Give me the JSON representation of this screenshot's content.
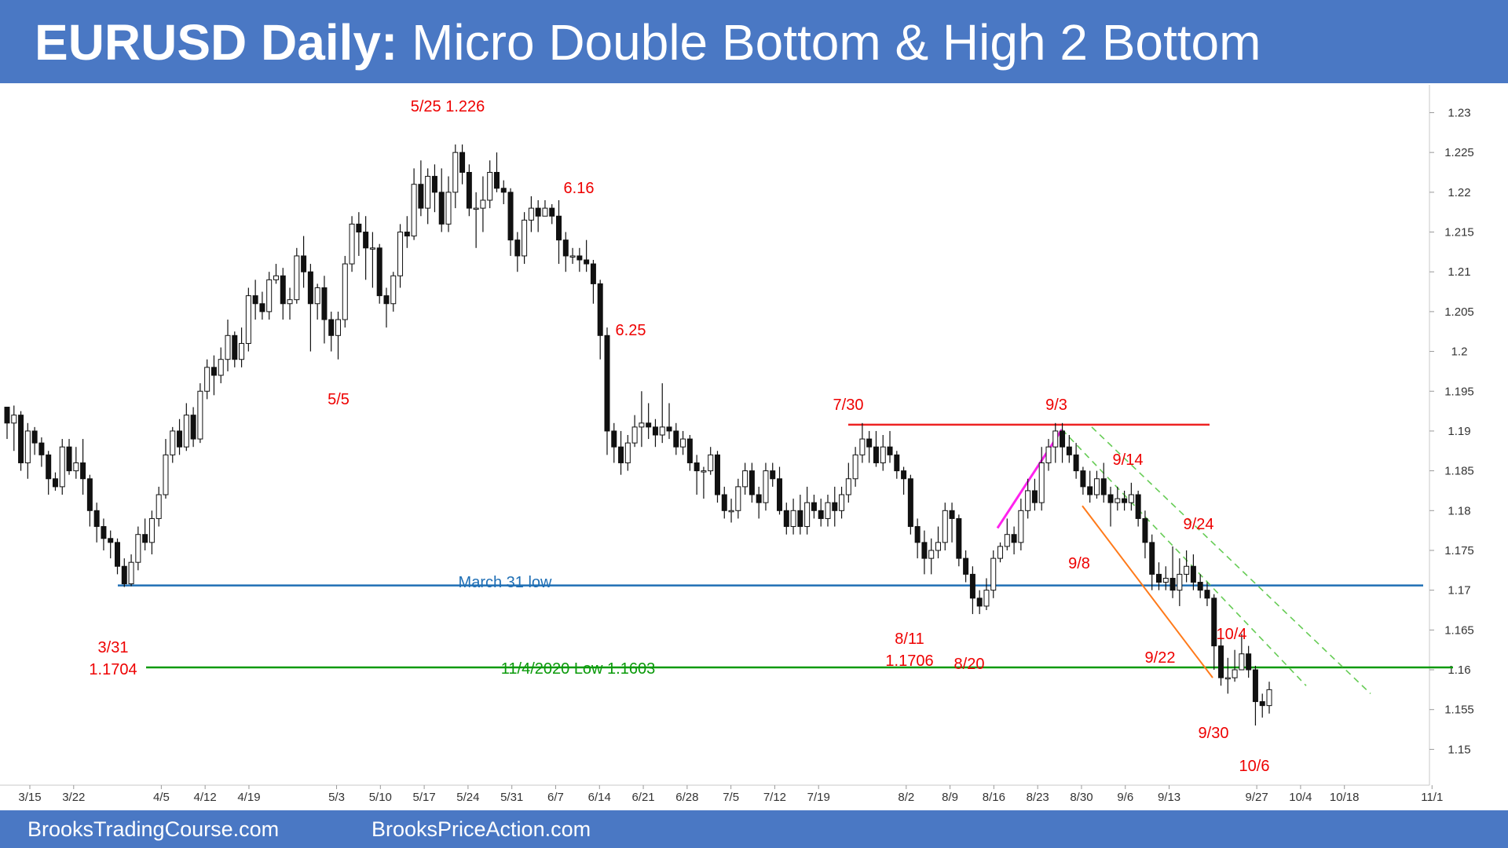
{
  "header": {
    "title_bold": "EURUSD Daily:",
    "title_rest": "Micro Double Bottom & High 2 Bottom"
  },
  "footer": {
    "left_link": "BrooksTradingCourse.com",
    "right_link": "BrooksPriceAction.com"
  },
  "colors": {
    "header_bg": "#4a78c4",
    "annotation": "#ee0000",
    "march_low_line": "#1f6fb5",
    "nov_low_line": "#0a9a0a",
    "resistance_line": "#ee2222",
    "magenta_line": "#ff22ee",
    "orange_line": "#ff7a1a",
    "channel_line": "#66cc55"
  },
  "chart_data": {
    "type": "candlestick",
    "title": "EURUSD Daily",
    "ylim": [
      1.1455,
      1.2335
    ],
    "y_ticks": [
      1.15,
      1.155,
      1.16,
      1.165,
      1.17,
      1.175,
      1.18,
      1.185,
      1.19,
      1.195,
      1.2,
      1.205,
      1.21,
      1.215,
      1.22,
      1.225,
      1.23
    ],
    "x_tick_labels": [
      {
        "day": 0,
        "label": "3/15"
      },
      {
        "day": 7,
        "label": "3/22"
      },
      {
        "day": 21,
        "label": "4/5"
      },
      {
        "day": 28,
        "label": "4/12"
      },
      {
        "day": 35,
        "label": "4/19"
      },
      {
        "day": 49,
        "label": "5/3"
      },
      {
        "day": 56,
        "label": "5/10"
      },
      {
        "day": 63,
        "label": "5/17"
      },
      {
        "day": 70,
        "label": "5/24"
      },
      {
        "day": 77,
        "label": "5/31"
      },
      {
        "day": 84,
        "label": "6/7"
      },
      {
        "day": 91,
        "label": "6/14"
      },
      {
        "day": 98,
        "label": "6/21"
      },
      {
        "day": 105,
        "label": "6/28"
      },
      {
        "day": 112,
        "label": "7/5"
      },
      {
        "day": 119,
        "label": "7/12"
      },
      {
        "day": 126,
        "label": "7/19"
      },
      {
        "day": 140,
        "label": "8/2"
      },
      {
        "day": 147,
        "label": "8/9"
      },
      {
        "day": 154,
        "label": "8/16"
      },
      {
        "day": 161,
        "label": "8/23"
      },
      {
        "day": 168,
        "label": "8/30"
      },
      {
        "day": 175,
        "label": "9/6"
      },
      {
        "day": 182,
        "label": "9/13"
      },
      {
        "day": 196,
        "label": "9/27"
      },
      {
        "day": 203,
        "label": "10/4"
      },
      {
        "day": 210,
        "label": "10/18"
      },
      {
        "day": 224,
        "label": "11/1"
      }
    ],
    "candles": [
      [
        1.193,
        1.191,
        1.193,
        1.189
      ],
      [
        1.191,
        1.192,
        1.1932,
        1.1875
      ],
      [
        1.192,
        1.186,
        1.1925,
        1.185
      ],
      [
        1.186,
        1.19,
        1.191,
        1.184
      ],
      [
        1.19,
        1.1885,
        1.1905,
        1.187
      ],
      [
        1.1885,
        1.187,
        1.1892,
        1.1855
      ],
      [
        1.187,
        1.184,
        1.1875,
        1.182
      ],
      [
        1.184,
        1.183,
        1.1848,
        1.1825
      ],
      [
        1.183,
        1.188,
        1.189,
        1.182
      ],
      [
        1.188,
        1.185,
        1.189,
        1.1845
      ],
      [
        1.185,
        1.186,
        1.188,
        1.184
      ],
      [
        1.186,
        1.184,
        1.189,
        1.182
      ],
      [
        1.184,
        1.18,
        1.1845,
        1.178
      ],
      [
        1.18,
        1.178,
        1.181,
        1.176
      ],
      [
        1.178,
        1.1765,
        1.179,
        1.175
      ],
      [
        1.1765,
        1.176,
        1.1775,
        1.174
      ],
      [
        1.176,
        1.173,
        1.1765,
        1.172
      ],
      [
        1.173,
        1.1708,
        1.174,
        1.1704
      ],
      [
        1.1708,
        1.1735,
        1.1745,
        1.1705
      ],
      [
        1.1735,
        1.177,
        1.178,
        1.1725
      ],
      [
        1.177,
        1.176,
        1.179,
        1.175
      ],
      [
        1.176,
        1.179,
        1.18,
        1.1745
      ],
      [
        1.179,
        1.182,
        1.183,
        1.178
      ],
      [
        1.182,
        1.187,
        1.189,
        1.1815
      ],
      [
        1.187,
        1.19,
        1.1905,
        1.186
      ],
      [
        1.19,
        1.188,
        1.1915,
        1.187
      ],
      [
        1.188,
        1.192,
        1.1935,
        1.1875
      ],
      [
        1.192,
        1.189,
        1.193,
        1.188
      ],
      [
        1.189,
        1.195,
        1.196,
        1.1885
      ],
      [
        1.195,
        1.198,
        1.199,
        1.194
      ],
      [
        1.198,
        1.197,
        1.1995,
        1.1945
      ],
      [
        1.197,
        1.199,
        1.2005,
        1.196
      ],
      [
        1.199,
        1.202,
        1.204,
        1.1975
      ],
      [
        1.202,
        1.199,
        1.2025,
        1.198
      ],
      [
        1.199,
        1.201,
        1.203,
        1.198
      ],
      [
        1.201,
        1.207,
        1.208,
        1.2
      ],
      [
        1.207,
        1.206,
        1.209,
        1.204
      ],
      [
        1.206,
        1.205,
        1.2075,
        1.204
      ],
      [
        1.205,
        1.209,
        1.21,
        1.204
      ],
      [
        1.209,
        1.2095,
        1.211,
        1.2085
      ],
      [
        1.2095,
        1.206,
        1.2105,
        1.204
      ],
      [
        1.206,
        1.2065,
        1.208,
        1.204
      ],
      [
        1.2065,
        1.212,
        1.213,
        1.206
      ],
      [
        1.212,
        1.21,
        1.2145,
        1.208
      ],
      [
        1.21,
        1.206,
        1.211,
        1.2
      ],
      [
        1.206,
        1.208,
        1.2085,
        1.204
      ],
      [
        1.208,
        1.204,
        1.2095,
        1.201
      ],
      [
        1.204,
        1.202,
        1.205,
        1.2
      ],
      [
        1.202,
        1.204,
        1.205,
        1.199
      ],
      [
        1.204,
        1.211,
        1.212,
        1.203
      ],
      [
        1.211,
        1.216,
        1.217,
        1.21
      ],
      [
        1.216,
        1.215,
        1.2175,
        1.212
      ],
      [
        1.215,
        1.213,
        1.217,
        1.209
      ],
      [
        1.213,
        1.213,
        1.215,
        1.208
      ],
      [
        1.213,
        1.207,
        1.2135,
        1.206
      ],
      [
        1.207,
        1.206,
        1.208,
        1.203
      ],
      [
        1.206,
        1.2095,
        1.21,
        1.205
      ],
      [
        1.2095,
        1.215,
        1.216,
        1.208
      ],
      [
        1.215,
        1.2145,
        1.217,
        1.213
      ],
      [
        1.2145,
        1.221,
        1.223,
        1.214
      ],
      [
        1.221,
        1.218,
        1.224,
        1.217
      ],
      [
        1.218,
        1.222,
        1.223,
        1.216
      ],
      [
        1.222,
        1.22,
        1.2235,
        1.2175
      ],
      [
        1.22,
        1.216,
        1.223,
        1.215
      ],
      [
        1.216,
        1.22,
        1.222,
        1.215
      ],
      [
        1.22,
        1.225,
        1.226,
        1.218
      ],
      [
        1.225,
        1.2225,
        1.226,
        1.221
      ],
      [
        1.2225,
        1.218,
        1.2235,
        1.217
      ],
      [
        1.218,
        1.218,
        1.22,
        1.213
      ],
      [
        1.218,
        1.219,
        1.222,
        1.215
      ],
      [
        1.219,
        1.2225,
        1.224,
        1.218
      ],
      [
        1.2225,
        1.2205,
        1.225,
        1.22
      ],
      [
        1.2205,
        1.22,
        1.2215,
        1.2185
      ],
      [
        1.22,
        1.214,
        1.2205,
        1.212
      ],
      [
        1.214,
        1.212,
        1.215,
        1.21
      ],
      [
        1.212,
        1.2165,
        1.2175,
        1.211
      ],
      [
        1.2165,
        1.218,
        1.2195,
        1.215
      ],
      [
        1.218,
        1.217,
        1.219,
        1.215
      ],
      [
        1.217,
        1.218,
        1.219,
        1.217
      ],
      [
        1.218,
        1.217,
        1.2185,
        1.216
      ],
      [
        1.217,
        1.214,
        1.219,
        1.211
      ],
      [
        1.214,
        1.212,
        1.215,
        1.21
      ],
      [
        1.212,
        1.212,
        1.213,
        1.211
      ],
      [
        1.212,
        1.2115,
        1.213,
        1.21
      ],
      [
        1.2115,
        1.211,
        1.214,
        1.21
      ],
      [
        1.211,
        1.2085,
        1.2115,
        1.206
      ],
      [
        1.2085,
        1.202,
        1.209,
        1.199
      ],
      [
        1.202,
        1.19,
        1.203,
        1.187
      ],
      [
        1.19,
        1.188,
        1.191,
        1.186
      ],
      [
        1.188,
        1.186,
        1.19,
        1.1845
      ],
      [
        1.186,
        1.1885,
        1.1895,
        1.185
      ],
      [
        1.1885,
        1.1905,
        1.192,
        1.188
      ],
      [
        1.1905,
        1.191,
        1.195,
        1.188
      ],
      [
        1.191,
        1.1905,
        1.1935,
        1.189
      ],
      [
        1.1905,
        1.1895,
        1.1915,
        1.188
      ],
      [
        1.1895,
        1.1905,
        1.196,
        1.1885
      ],
      [
        1.1905,
        1.19,
        1.1935,
        1.189
      ],
      [
        1.19,
        1.188,
        1.191,
        1.187
      ],
      [
        1.188,
        1.189,
        1.19,
        1.187
      ],
      [
        1.189,
        1.186,
        1.1895,
        1.185
      ],
      [
        1.186,
        1.185,
        1.187,
        1.182
      ],
      [
        1.185,
        1.185,
        1.1855,
        1.1815
      ],
      [
        1.185,
        1.187,
        1.188,
        1.1845
      ],
      [
        1.187,
        1.182,
        1.1875,
        1.181
      ],
      [
        1.182,
        1.18,
        1.183,
        1.179
      ],
      [
        1.18,
        1.18,
        1.1815,
        1.1785
      ],
      [
        1.18,
        1.183,
        1.184,
        1.179
      ],
      [
        1.183,
        1.185,
        1.186,
        1.182
      ],
      [
        1.185,
        1.182,
        1.186,
        1.181
      ],
      [
        1.182,
        1.181,
        1.183,
        1.179
      ],
      [
        1.181,
        1.185,
        1.186,
        1.18
      ],
      [
        1.185,
        1.184,
        1.186,
        1.183
      ],
      [
        1.184,
        1.18,
        1.1855,
        1.1795
      ],
      [
        1.18,
        1.178,
        1.181,
        1.177
      ],
      [
        1.178,
        1.18,
        1.1815,
        1.177
      ],
      [
        1.18,
        1.178,
        1.182,
        1.177
      ],
      [
        1.178,
        1.181,
        1.183,
        1.177
      ],
      [
        1.181,
        1.18,
        1.182,
        1.179
      ],
      [
        1.18,
        1.179,
        1.1815,
        1.178
      ],
      [
        1.179,
        1.181,
        1.182,
        1.178
      ],
      [
        1.181,
        1.18,
        1.183,
        1.178
      ],
      [
        1.18,
        1.182,
        1.183,
        1.179
      ],
      [
        1.182,
        1.184,
        1.186,
        1.181
      ],
      [
        1.184,
        1.187,
        1.188,
        1.183
      ],
      [
        1.187,
        1.189,
        1.191,
        1.186
      ],
      [
        1.189,
        1.188,
        1.19,
        1.186
      ],
      [
        1.188,
        1.186,
        1.19,
        1.1855
      ],
      [
        1.186,
        1.188,
        1.1895,
        1.185
      ],
      [
        1.188,
        1.187,
        1.19,
        1.186
      ],
      [
        1.187,
        1.185,
        1.1875,
        1.184
      ],
      [
        1.185,
        1.184,
        1.1855,
        1.182
      ],
      [
        1.184,
        1.178,
        1.1845,
        1.177
      ],
      [
        1.178,
        1.176,
        1.179,
        1.174
      ],
      [
        1.176,
        1.174,
        1.1775,
        1.172
      ],
      [
        1.174,
        1.175,
        1.1765,
        1.172
      ],
      [
        1.175,
        1.176,
        1.178,
        1.174
      ],
      [
        1.176,
        1.18,
        1.181,
        1.175
      ],
      [
        1.18,
        1.179,
        1.181,
        1.176
      ],
      [
        1.179,
        1.174,
        1.1795,
        1.173
      ],
      [
        1.174,
        1.172,
        1.175,
        1.171
      ],
      [
        1.172,
        1.169,
        1.173,
        1.167
      ],
      [
        1.169,
        1.168,
        1.17,
        1.167
      ],
      [
        1.168,
        1.17,
        1.1715,
        1.1675
      ],
      [
        1.17,
        1.174,
        1.175,
        1.169
      ],
      [
        1.174,
        1.1755,
        1.176,
        1.1735
      ],
      [
        1.1755,
        1.177,
        1.179,
        1.175
      ],
      [
        1.177,
        1.176,
        1.178,
        1.1745
      ],
      [
        1.176,
        1.18,
        1.1815,
        1.175
      ],
      [
        1.18,
        1.1825,
        1.184,
        1.179
      ],
      [
        1.1825,
        1.181,
        1.184,
        1.18
      ],
      [
        1.181,
        1.186,
        1.188,
        1.18
      ],
      [
        1.186,
        1.188,
        1.189,
        1.185
      ],
      [
        1.188,
        1.19,
        1.191,
        1.186
      ],
      [
        1.19,
        1.188,
        1.191,
        1.186
      ],
      [
        1.188,
        1.187,
        1.1895,
        1.186
      ],
      [
        1.187,
        1.185,
        1.1885,
        1.184
      ],
      [
        1.185,
        1.183,
        1.1855,
        1.182
      ],
      [
        1.183,
        1.182,
        1.185,
        1.181
      ],
      [
        1.182,
        1.184,
        1.185,
        1.1815
      ],
      [
        1.184,
        1.182,
        1.186,
        1.181
      ],
      [
        1.182,
        1.181,
        1.183,
        1.178
      ],
      [
        1.181,
        1.1815,
        1.183,
        1.18
      ],
      [
        1.1815,
        1.181,
        1.1825,
        1.18
      ],
      [
        1.181,
        1.182,
        1.1835,
        1.18
      ],
      [
        1.182,
        1.179,
        1.1825,
        1.178
      ],
      [
        1.179,
        1.176,
        1.18,
        1.174
      ],
      [
        1.176,
        1.172,
        1.177,
        1.17
      ],
      [
        1.172,
        1.171,
        1.1735,
        1.17
      ],
      [
        1.171,
        1.1715,
        1.173,
        1.17
      ],
      [
        1.1715,
        1.17,
        1.1755,
        1.169
      ],
      [
        1.17,
        1.172,
        1.174,
        1.168
      ],
      [
        1.172,
        1.173,
        1.175,
        1.171
      ],
      [
        1.173,
        1.171,
        1.1745,
        1.17
      ],
      [
        1.171,
        1.17,
        1.172,
        1.169
      ],
      [
        1.17,
        1.169,
        1.171,
        1.168
      ],
      [
        1.169,
        1.163,
        1.1695,
        1.16
      ],
      [
        1.163,
        1.159,
        1.164,
        1.158
      ],
      [
        1.159,
        1.159,
        1.1615,
        1.157
      ],
      [
        1.159,
        1.16,
        1.1625,
        1.1585
      ],
      [
        1.16,
        1.162,
        1.1645,
        1.16
      ],
      [
        1.162,
        1.16,
        1.163,
        1.159
      ],
      [
        1.16,
        1.156,
        1.1605,
        1.153
      ],
      [
        1.156,
        1.1555,
        1.157,
        1.154
      ],
      [
        1.1555,
        1.1575,
        1.1585,
        1.1545
      ]
    ],
    "horizontal_lines": [
      {
        "name": "march-31-low-line",
        "value": 1.1706,
        "color": "#1f6fb5",
        "label": "March 31 low"
      },
      {
        "name": "nov-2020-low-line",
        "value": 1.1603,
        "color": "#0a9a0a",
        "label": "11/4/2020 Low 1.1603"
      },
      {
        "name": "resistance-line",
        "value": 1.1908,
        "color": "#ee2222",
        "label": ""
      }
    ],
    "annotations": [
      {
        "name": "label-5-25",
        "text": "5/25 1.226"
      },
      {
        "name": "label-6-16",
        "text": "6.16"
      },
      {
        "name": "label-6-25",
        "text": "6.25"
      },
      {
        "name": "label-5-5",
        "text": "5/5"
      },
      {
        "name": "label-7-30",
        "text": "7/30"
      },
      {
        "name": "label-9-3",
        "text": "9/3"
      },
      {
        "name": "label-9-14",
        "text": "9/14"
      },
      {
        "name": "label-9-24",
        "text": "9/24"
      },
      {
        "name": "label-9-8",
        "text": "9/8"
      },
      {
        "name": "label-10-4",
        "text": "10/4"
      },
      {
        "name": "label-9-22",
        "text": "9/22"
      },
      {
        "name": "label-9-30",
        "text": "9/30"
      },
      {
        "name": "label-10-6",
        "text": "10/6"
      },
      {
        "name": "label-3-31",
        "text": "3/31"
      },
      {
        "name": "label-3-31-price",
        "text": "1.1704"
      },
      {
        "name": "label-8-11",
        "text": "8/11"
      },
      {
        "name": "label-8-11-price",
        "text": "1.1706"
      },
      {
        "name": "label-8-20",
        "text": "8/20"
      }
    ]
  }
}
